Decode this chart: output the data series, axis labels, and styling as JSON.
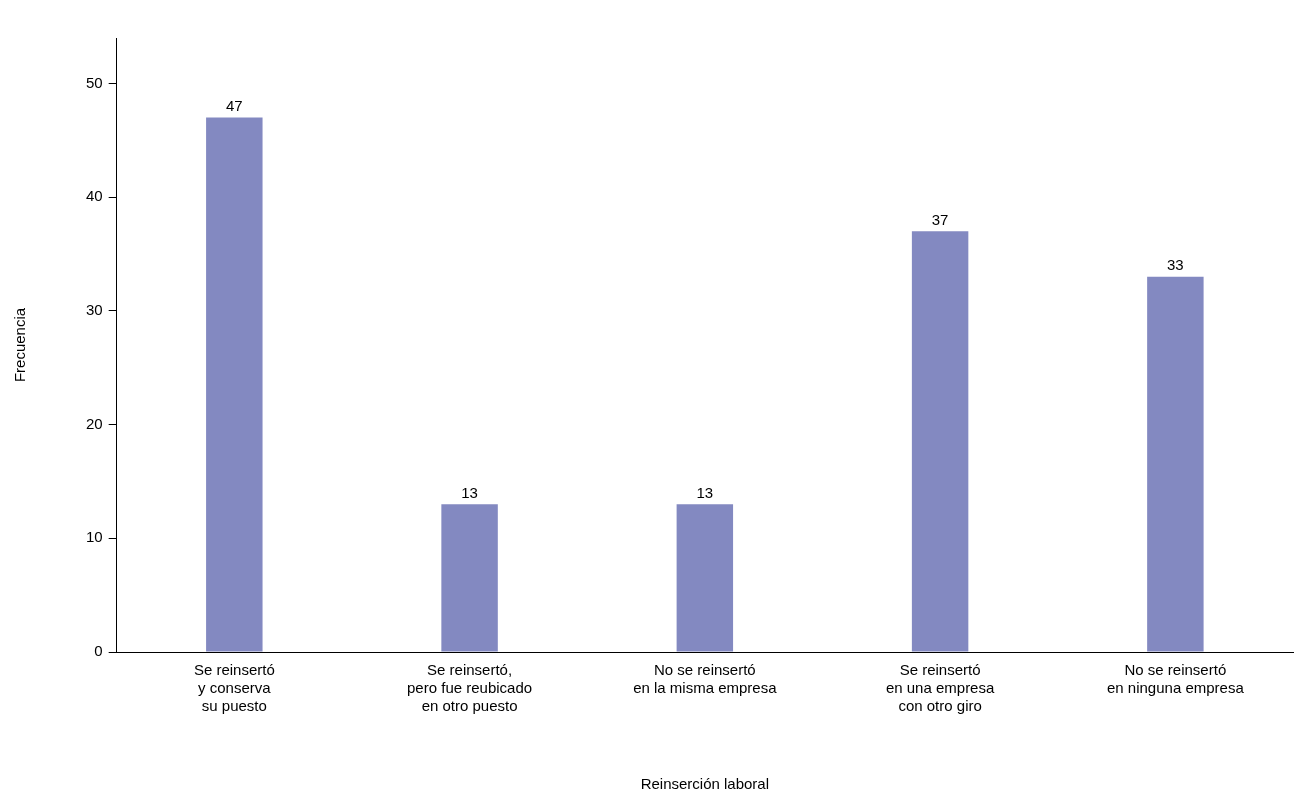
{
  "chart_data": {
    "type": "bar",
    "xlabel": "Reinserción laboral",
    "ylabel": "Frecuencia",
    "categories": [
      "Se reinsertó\ny conserva\nsu puesto",
      "Se reinsertó,\npero fue reubicado\nen otro puesto",
      "No se reinsertó\nen la misma empresa",
      "Se reinsertó\nen una empresa\ncon otro giro",
      "No se reinsertó\nen ninguna empresa"
    ],
    "values": [
      47,
      13,
      13,
      37,
      33
    ],
    "data_labels": true,
    "color": "#8389c1",
    "ylim": [
      0,
      54
    ],
    "yticks": [
      0,
      10,
      20,
      30,
      40,
      50
    ],
    "grid": false,
    "legend": false
  }
}
